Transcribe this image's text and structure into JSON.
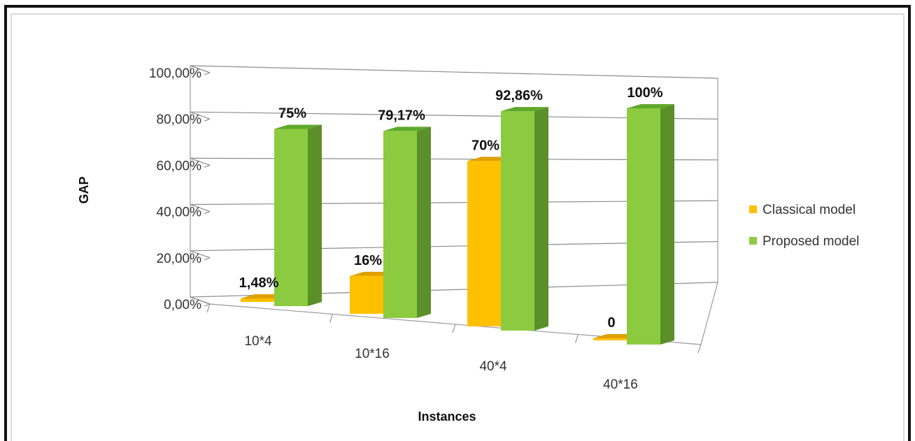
{
  "chart_data": {
    "type": "bar",
    "title": "",
    "xlabel": "Instances",
    "ylabel": "GAP",
    "ylim": [
      0,
      100
    ],
    "y_ticks": [
      0,
      20,
      40,
      60,
      80,
      100
    ],
    "y_tick_labels": [
      "0,00%",
      "20,00%",
      "40,00%",
      "60,00%",
      "80,00%",
      "100,00%"
    ],
    "categories": [
      "10*4",
      "10*16",
      "40*4",
      "40*16"
    ],
    "series": [
      {
        "name": "Classical model",
        "values": [
          1.48,
          16,
          70,
          0
        ],
        "labels": [
          "1,48%",
          "16%",
          "70%",
          "0"
        ],
        "color": "#FFC000",
        "top_color": "#E0A000",
        "side_color": "#C89000"
      },
      {
        "name": "Proposed model",
        "values": [
          75,
          79.17,
          92.86,
          100
        ],
        "labels": [
          "75%",
          "79,17%",
          "92,86%",
          "100%"
        ],
        "color": "#8CCB3F",
        "top_color": "#5FA82B",
        "side_color": "#5A8F2A"
      }
    ],
    "grid": true,
    "legend_position": "right",
    "style": "3d-clustered-column"
  }
}
